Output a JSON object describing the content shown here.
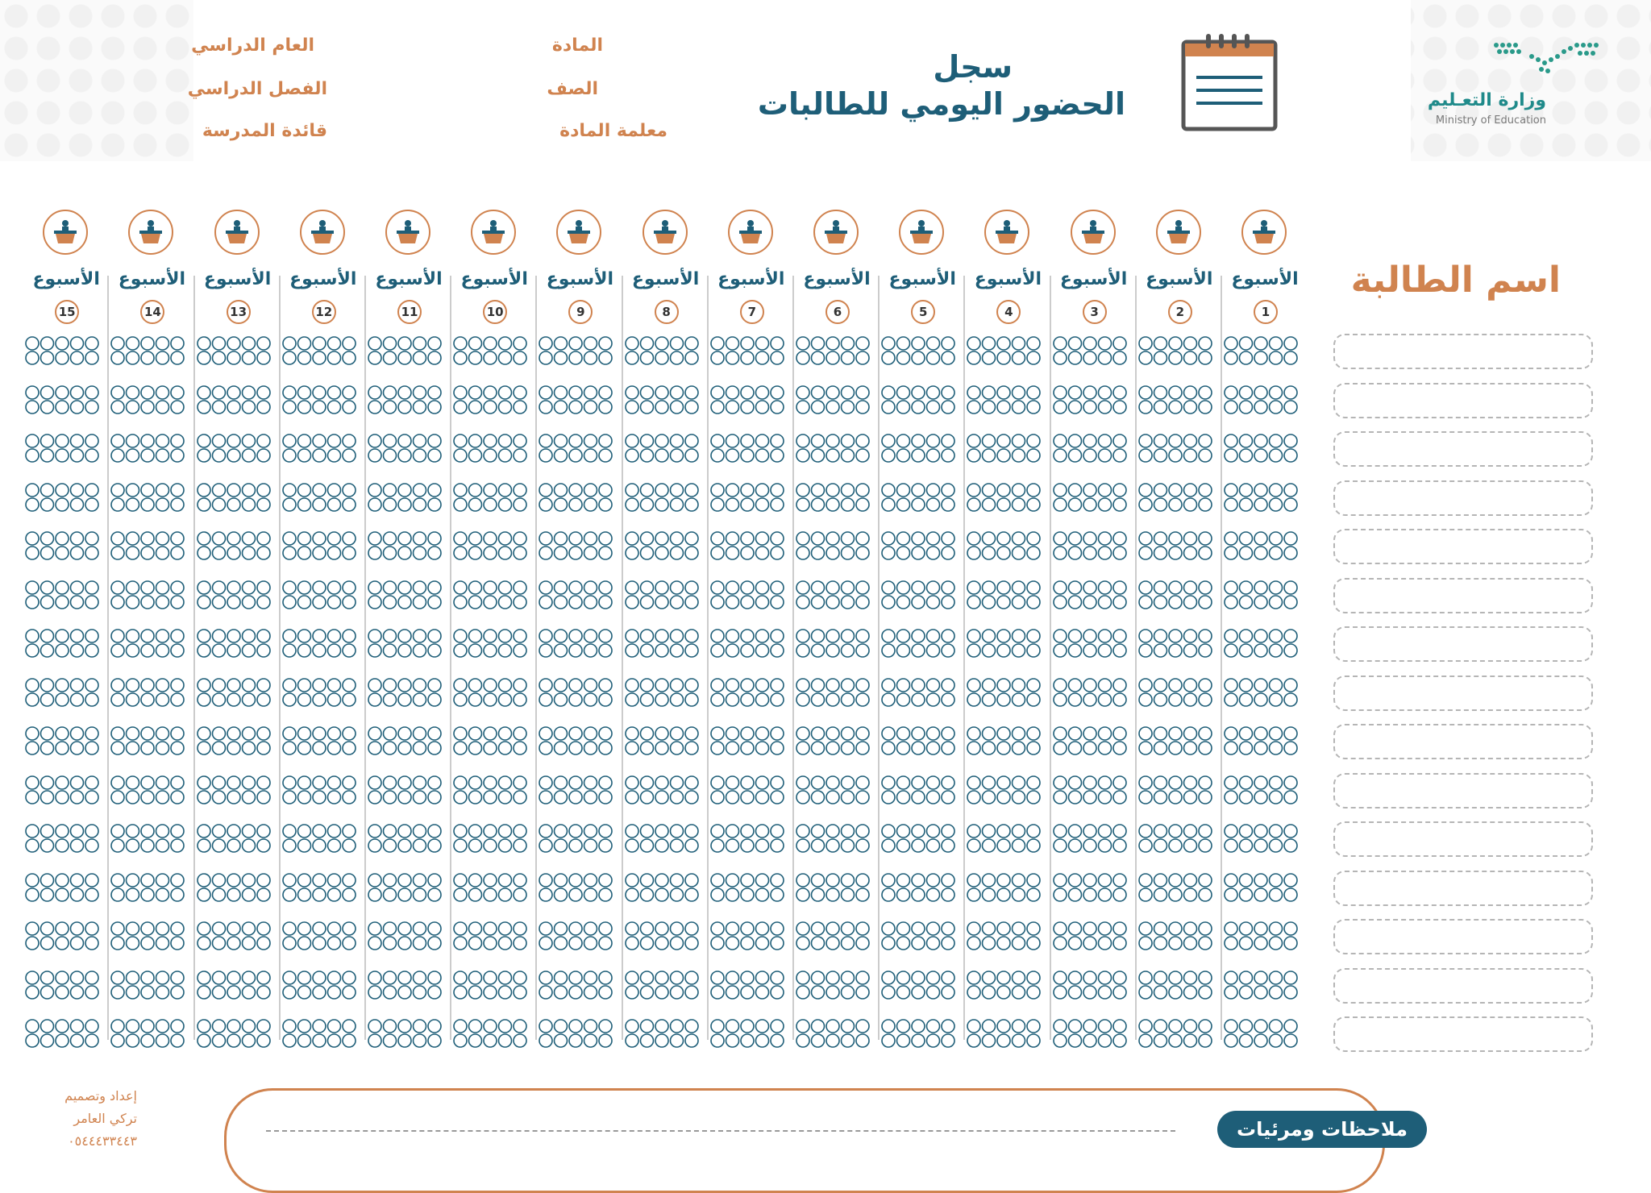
{
  "header": {
    "title_line1": "سجل",
    "title_line2": "الحضور اليومي للطالبات",
    "logo_ar": "وزارة التعـليم",
    "logo_en": "Ministry of Education",
    "meta_right": [
      "المادة",
      "الصف",
      "معلمة المادة"
    ],
    "meta_left": [
      "العام الدراسي",
      "الفصل الدراسي",
      "قائدة المدرسة"
    ]
  },
  "students": {
    "heading": "اسم الطالبة",
    "row_count": 15
  },
  "weeks": {
    "label": "الأسبوع",
    "numbers": [
      "1",
      "2",
      "3",
      "4",
      "5",
      "6",
      "7",
      "8",
      "9",
      "10",
      "11",
      "12",
      "13",
      "14",
      "15"
    ]
  },
  "footer": {
    "notes_label": "ملاحظات ومرئيات",
    "credit_line1": "إعداد وتصميم",
    "credit_line2": "تركي العامر",
    "credit_line3": "٠٥٤٤٤٣٣٤٤٣"
  },
  "colors": {
    "accent_orange": "#d0834f",
    "primary_blue": "#1e5e78",
    "logo_teal": "#1f8a8a"
  }
}
